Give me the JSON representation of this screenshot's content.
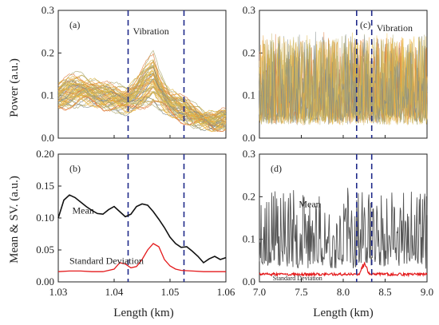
{
  "figure": {
    "ylabel_left_top": "Power (a.u.)",
    "ylabel_left_bottom": "Mean & SV. (a.u.)",
    "xlabel_left": "Length (km)",
    "xlabel_right": "Length (km)"
  },
  "colors": {
    "trace_palette": [
      "#e8a33a",
      "#d9b23c",
      "#c9b86a",
      "#a9a66d",
      "#7f8a8a",
      "#e07b39",
      "#f0c24b"
    ],
    "mean": "#111111",
    "mean_gray": "#555555",
    "sd": "#e41a1c",
    "marker": "#1f2a8a"
  },
  "chart_data": [
    {
      "panel": "a",
      "type": "line",
      "panel_label": "(a)",
      "annotation": "Vibration",
      "xlim": [
        1.03,
        1.06
      ],
      "ylim": [
        0.0,
        0.3
      ],
      "yticks": [
        "0.0",
        "0.1",
        "0.2",
        "0.3"
      ],
      "vlines": [
        1.0425,
        1.0525
      ],
      "series_count": 60,
      "envelope": {
        "x": [
          1.03,
          1.032,
          1.034,
          1.036,
          1.038,
          1.04,
          1.042,
          1.044,
          1.046,
          1.047,
          1.048,
          1.05,
          1.052,
          1.054,
          1.056,
          1.058,
          1.06
        ],
        "center": [
          0.1,
          0.11,
          0.115,
          0.11,
          0.1,
          0.095,
          0.09,
          0.105,
          0.13,
          0.14,
          0.115,
          0.085,
          0.07,
          0.055,
          0.045,
          0.04,
          0.045
        ],
        "spread": [
          0.03,
          0.04,
          0.04,
          0.035,
          0.03,
          0.03,
          0.035,
          0.04,
          0.06,
          0.07,
          0.05,
          0.035,
          0.03,
          0.025,
          0.02,
          0.02,
          0.02
        ]
      }
    },
    {
      "panel": "b",
      "type": "line",
      "panel_label": "(b)",
      "xlim": [
        1.03,
        1.06
      ],
      "ylim": [
        0.0,
        0.2
      ],
      "xticks": [
        "1.03",
        "1.04",
        "1.05",
        "1.06"
      ],
      "yticks": [
        "0.00",
        "0.05",
        "0.10",
        "0.15",
        "0.20"
      ],
      "vlines": [
        1.0425,
        1.0525
      ],
      "mean_label": "Mean",
      "sd_label": "Standard Deviation",
      "series": [
        {
          "name": "Mean",
          "x": [
            1.03,
            1.031,
            1.032,
            1.033,
            1.034,
            1.035,
            1.036,
            1.037,
            1.038,
            1.039,
            1.04,
            1.041,
            1.042,
            1.043,
            1.044,
            1.045,
            1.046,
            1.047,
            1.048,
            1.049,
            1.05,
            1.051,
            1.052,
            1.053,
            1.054,
            1.055,
            1.056,
            1.057,
            1.058,
            1.059,
            1.06
          ],
          "values": [
            0.1,
            0.128,
            0.136,
            0.132,
            0.125,
            0.118,
            0.112,
            0.107,
            0.106,
            0.113,
            0.118,
            0.11,
            0.102,
            0.106,
            0.118,
            0.122,
            0.12,
            0.11,
            0.098,
            0.085,
            0.07,
            0.06,
            0.054,
            0.055,
            0.048,
            0.04,
            0.03,
            0.036,
            0.04,
            0.035,
            0.038
          ]
        },
        {
          "name": "Standard Deviation",
          "x": [
            1.03,
            1.032,
            1.034,
            1.036,
            1.038,
            1.04,
            1.041,
            1.042,
            1.043,
            1.044,
            1.045,
            1.046,
            1.047,
            1.048,
            1.049,
            1.05,
            1.051,
            1.052,
            1.054,
            1.056,
            1.058,
            1.06
          ],
          "values": [
            0.016,
            0.017,
            0.017,
            0.016,
            0.016,
            0.02,
            0.03,
            0.028,
            0.022,
            0.024,
            0.035,
            0.05,
            0.06,
            0.055,
            0.035,
            0.025,
            0.02,
            0.018,
            0.017,
            0.016,
            0.016,
            0.016
          ]
        }
      ]
    },
    {
      "panel": "c",
      "type": "line",
      "panel_label": "(c)",
      "annotation": "Vibration",
      "xlim": [
        7.0,
        9.0
      ],
      "ylim": [
        0.0,
        0.3
      ],
      "yticks": [
        "0.0",
        "0.1",
        "0.2",
        "0.3"
      ],
      "vlines": [
        8.16,
        8.34
      ],
      "series_count": 12,
      "baseline": 0.07,
      "peak_max": 0.27
    },
    {
      "panel": "d",
      "type": "line",
      "panel_label": "(d)",
      "xlim": [
        7.0,
        9.0
      ],
      "ylim": [
        0.0,
        0.3
      ],
      "xticks": [
        "7.0",
        "7.5",
        "8.0",
        "8.5",
        "9.0"
      ],
      "yticks": [
        "0.0",
        "0.1",
        "0.2",
        "0.3"
      ],
      "vlines": [
        8.16,
        8.34
      ],
      "mean_label": "Mean",
      "sd_label": "Standard Deviation",
      "mean_range": [
        0.03,
        0.24
      ],
      "sd_baseline": 0.018,
      "sd_peak": {
        "x": 8.25,
        "value": 0.052
      }
    }
  ]
}
